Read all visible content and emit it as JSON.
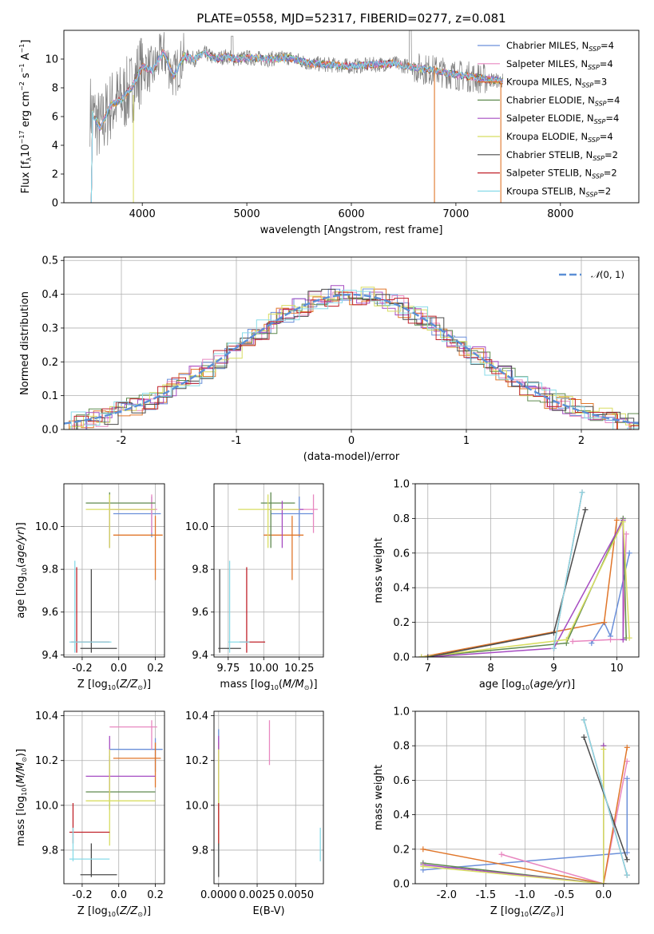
{
  "title": "PLATE=0558, MJD=52317, FIBERID=0277, z=0.081",
  "colors": {
    "Chabrier MILES": "#6a8fd9",
    "Salpeter MILES": "#e887c0",
    "Kroupa MILES": "#e0762a",
    "Chabrier ELODIE": "#5f8a4f",
    "Salpeter ELODIE": "#a64cc2",
    "Kroupa ELODIE": "#d8dd62",
    "Chabrier STELIB": "#4a4a4a",
    "Salpeter STELIB": "#c0222a",
    "Kroupa STELIB": "#88dbe8",
    "data": "#808080",
    "normal": "#5b8fd6"
  },
  "chart_data": [
    {
      "type": "line",
      "id": "spectrum",
      "title": "PLATE=0558, MJD=52317, FIBERID=0277, z=0.081",
      "xlabel": "wavelength [Angstrom, rest frame]",
      "ylabel": "Flux [f_λ 10^-17 erg cm^-2 s^-1 A^-1]",
      "xlim": [
        3250,
        8750
      ],
      "ylim": [
        0,
        12
      ],
      "xticks": [
        4000,
        5000,
        6000,
        7000,
        8000
      ],
      "yticks": [
        0,
        2,
        4,
        6,
        8,
        10
      ],
      "grid": false,
      "legend_position": "top-right",
      "model_x": [
        3500,
        3600,
        3700,
        3800,
        3900,
        4000,
        4100,
        4200,
        4300,
        4400,
        4500,
        4600,
        4700,
        4800,
        4900,
        5000,
        5200,
        5400,
        5600,
        5800,
        6000,
        6200,
        6400,
        6600,
        6800,
        7000,
        7200,
        7400
      ],
      "model_y": [
        6.5,
        5.2,
        6.8,
        7.2,
        8.0,
        9.5,
        9.2,
        10.5,
        8.8,
        10.2,
        10.0,
        10.4,
        10.0,
        10.2,
        10.0,
        10.1,
        10.0,
        10.1,
        9.7,
        9.6,
        9.5,
        9.6,
        9.7,
        9.4,
        9.2,
        8.9,
        8.7,
        8.5
      ],
      "series": [
        {
          "name": "Chabrier MILES, N_SSP=4"
        },
        {
          "name": "Salpeter MILES, N_SSP=4"
        },
        {
          "name": "Kroupa MILES, N_SSP=3"
        },
        {
          "name": "Chabrier ELODIE, N_SSP=4"
        },
        {
          "name": "Salpeter ELODIE, N_SSP=4"
        },
        {
          "name": "Kroupa ELODIE, N_SSP=4"
        },
        {
          "name": "Chabrier STELIB, N_SSP=2"
        },
        {
          "name": "Salpeter STELIB, N_SSP=2"
        },
        {
          "name": "Kroupa STELIB, N_SSP=2"
        }
      ]
    },
    {
      "type": "line",
      "id": "residuals",
      "xlabel": "(data-model)/error",
      "ylabel": "Normed distribution",
      "xlim": [
        -2.5,
        2.5
      ],
      "ylim": [
        0,
        0.51
      ],
      "xticks": [
        -2,
        -1,
        0,
        1,
        2
      ],
      "yticks": [
        0.0,
        0.1,
        0.2,
        0.3,
        0.4,
        0.5
      ],
      "grid": true,
      "legend_position": "top-right",
      "legend": "N(0,1)",
      "series": [
        {
          "name": "N(0,1)",
          "mean": 0,
          "sigma": 1
        }
      ]
    },
    {
      "type": "scatter",
      "id": "age-vs-Z",
      "xlabel": "Z [log10(Z/Z⊙)]",
      "ylabel": "age [log10(age/yr)]",
      "xlim": [
        -0.3,
        0.25
      ],
      "ylim": [
        9.39,
        10.2
      ],
      "xticks": [
        -0.2,
        0.0,
        0.2
      ],
      "yticks": [
        9.4,
        9.6,
        9.8,
        10.0
      ],
      "grid": true,
      "points": [
        {
          "model": "Chabrier MILES",
          "x": 0.18,
          "y": 10.06,
          "xlo": -0.03,
          "xhi": 0.23,
          "ylo": 9.95,
          "yhi": 10.14
        },
        {
          "model": "Salpeter MILES",
          "x": 0.18,
          "y": 10.08,
          "xlo": -0.02,
          "xhi": 0.21,
          "ylo": 9.97,
          "yhi": 10.15
        },
        {
          "model": "Kroupa MILES",
          "x": 0.2,
          "y": 9.96,
          "xlo": -0.03,
          "xhi": 0.24,
          "ylo": 9.75,
          "yhi": 10.05
        },
        {
          "model": "Chabrier ELODIE",
          "x": -0.05,
          "y": 10.11,
          "xlo": -0.18,
          "xhi": 0.2,
          "ylo": 9.9,
          "yhi": 10.16
        },
        {
          "model": "Salpeter ELODIE",
          "x": -0.05,
          "y": 10.08,
          "xlo": -0.05,
          "xhi": 0.2,
          "ylo": 9.9,
          "yhi": 10.12
        },
        {
          "model": "Kroupa ELODIE",
          "x": -0.05,
          "y": 10.08,
          "xlo": -0.18,
          "xhi": 0.2,
          "ylo": 9.9,
          "yhi": 10.15
        },
        {
          "model": "Chabrier STELIB",
          "x": -0.15,
          "y": 9.43,
          "xlo": -0.21,
          "xhi": -0.01,
          "ylo": 9.41,
          "yhi": 9.8
        },
        {
          "model": "Salpeter STELIB",
          "x": -0.23,
          "y": 9.46,
          "xlo": -0.26,
          "xhi": -0.05,
          "ylo": 9.41,
          "yhi": 9.81
        },
        {
          "model": "Kroupa STELIB",
          "x": -0.24,
          "y": 9.46,
          "xlo": -0.27,
          "xhi": -0.04,
          "ylo": 9.41,
          "yhi": 9.84
        }
      ]
    },
    {
      "type": "scatter",
      "id": "age-vs-mass",
      "xlabel": "mass [log10(M/M⊙)]",
      "xlim": [
        9.65,
        10.42
      ],
      "ylim": [
        9.39,
        10.2
      ],
      "xticks": [
        9.75,
        10.0,
        10.25
      ],
      "yticks": [
        9.4,
        9.6,
        9.8,
        10.0
      ],
      "grid": true,
      "points": [
        {
          "model": "Chabrier MILES",
          "x": 10.25,
          "y": 10.06,
          "xlo": 10.05,
          "xhi": 10.35,
          "ylo": 9.95,
          "yhi": 10.14
        },
        {
          "model": "Salpeter MILES",
          "x": 10.35,
          "y": 10.08,
          "xlo": 10.2,
          "xhi": 10.38,
          "ylo": 9.97,
          "yhi": 10.15
        },
        {
          "model": "Kroupa MILES",
          "x": 10.2,
          "y": 9.96,
          "xlo": 10.0,
          "xhi": 10.28,
          "ylo": 9.75,
          "yhi": 10.05
        },
        {
          "model": "Chabrier ELODIE",
          "x": 10.05,
          "y": 10.11,
          "xlo": 9.98,
          "xhi": 10.22,
          "ylo": 9.9,
          "yhi": 10.16
        },
        {
          "model": "Salpeter ELODIE",
          "x": 10.13,
          "y": 10.08,
          "xlo": 10.03,
          "xhi": 10.28,
          "ylo": 9.9,
          "yhi": 10.12
        },
        {
          "model": "Kroupa ELODIE",
          "x": 10.03,
          "y": 10.08,
          "xlo": 9.82,
          "xhi": 10.25,
          "ylo": 9.9,
          "yhi": 10.15
        },
        {
          "model": "Chabrier STELIB",
          "x": 9.69,
          "y": 9.43,
          "xlo": 9.68,
          "xhi": 9.84,
          "ylo": 9.41,
          "yhi": 9.8
        },
        {
          "model": "Salpeter STELIB",
          "x": 9.88,
          "y": 9.46,
          "xlo": 9.83,
          "xhi": 10.01,
          "ylo": 9.41,
          "yhi": 9.81
        },
        {
          "model": "Kroupa STELIB",
          "x": 9.76,
          "y": 9.46,
          "xlo": 9.75,
          "xhi": 9.9,
          "ylo": 9.41,
          "yhi": 9.84
        }
      ]
    },
    {
      "type": "line",
      "id": "weight-vs-age",
      "xlabel": "age [log10(age/yr)]",
      "ylabel": "mass weight",
      "xlim": [
        6.8,
        10.35
      ],
      "ylim": [
        0,
        1.0
      ],
      "xticks": [
        7,
        8,
        9,
        10
      ],
      "yticks": [
        0.0,
        0.2,
        0.4,
        0.6,
        0.8,
        1.0
      ],
      "grid": true,
      "series": [
        {
          "name": "Chabrier MILES",
          "x": [
            9.6,
            9.8,
            9.9,
            10.2
          ],
          "y": [
            0.08,
            0.2,
            0.12,
            0.6
          ]
        },
        {
          "name": "Salpeter MILES",
          "x": [
            9.3,
            9.9,
            10.1,
            10.15
          ],
          "y": [
            0.09,
            0.1,
            0.1,
            0.71
          ]
        },
        {
          "name": "Kroupa MILES",
          "x": [
            6.9,
            9.8,
            10.0
          ],
          "y": [
            0.0,
            0.2,
            0.79
          ]
        },
        {
          "name": "Chabrier ELODIE",
          "x": [
            6.9,
            9.2,
            10.1,
            10.15
          ],
          "y": [
            0.0,
            0.08,
            0.8,
            0.11
          ]
        },
        {
          "name": "Salpeter ELODIE",
          "x": [
            7.0,
            9.0,
            10.1,
            10.1
          ],
          "y": [
            0.0,
            0.05,
            0.79,
            0.1
          ]
        },
        {
          "name": "Kroupa ELODIE",
          "x": [
            6.9,
            9.2,
            10.1,
            10.2
          ],
          "y": [
            0.0,
            0.1,
            0.78,
            0.11
          ]
        },
        {
          "name": "Chabrier STELIB",
          "x": [
            7.0,
            9.0,
            9.5
          ],
          "y": [
            0.0,
            0.14,
            0.85
          ]
        },
        {
          "name": "Salpeter STELIB",
          "x": [
            9.0,
            9.45
          ],
          "y": [
            0.05,
            0.95
          ]
        },
        {
          "name": "Kroupa STELIB",
          "x": [
            9.0,
            9.45
          ],
          "y": [
            0.05,
            0.95
          ]
        }
      ]
    },
    {
      "type": "scatter",
      "id": "mass-vs-Z",
      "xlabel": "Z [log10(Z/Z⊙)]",
      "ylabel": "mass [log10(M/M⊙)]",
      "xlim": [
        -0.3,
        0.25
      ],
      "ylim": [
        9.65,
        10.42
      ],
      "xticks": [
        -0.2,
        0.0,
        0.2
      ],
      "yticks": [
        9.8,
        10.0,
        10.2,
        10.4
      ],
      "grid": true,
      "points": [
        {
          "model": "Chabrier MILES",
          "x": 0.2,
          "y": 10.25,
          "xlo": -0.05,
          "xhi": 0.24,
          "ylo": 10.15,
          "yhi": 10.3
        },
        {
          "model": "Salpeter MILES",
          "x": 0.18,
          "y": 10.35,
          "xlo": -0.05,
          "xhi": 0.21,
          "ylo": 10.25,
          "yhi": 10.38
        },
        {
          "model": "Kroupa MILES",
          "x": 0.2,
          "y": 10.21,
          "xlo": -0.03,
          "xhi": 0.23,
          "ylo": 10.08,
          "yhi": 10.28
        },
        {
          "model": "Chabrier ELODIE",
          "x": -0.05,
          "y": 10.06,
          "xlo": -0.18,
          "xhi": 0.2,
          "ylo": 9.98,
          "yhi": 10.22
        },
        {
          "model": "Salpeter ELODIE",
          "x": -0.05,
          "y": 10.13,
          "xlo": -0.18,
          "xhi": 0.2,
          "ylo": 10.03,
          "yhi": 10.31
        },
        {
          "model": "Kroupa ELODIE",
          "x": -0.05,
          "y": 10.02,
          "xlo": -0.18,
          "xhi": 0.2,
          "ylo": 9.82,
          "yhi": 10.25
        },
        {
          "model": "Chabrier STELIB",
          "x": -0.15,
          "y": 9.69,
          "xlo": -0.21,
          "xhi": -0.01,
          "ylo": 9.68,
          "yhi": 9.83
        },
        {
          "model": "Salpeter STELIB",
          "x": -0.25,
          "y": 9.88,
          "xlo": -0.27,
          "xhi": -0.05,
          "ylo": 9.83,
          "yhi": 10.01
        },
        {
          "model": "Kroupa STELIB",
          "x": -0.25,
          "y": 9.76,
          "xlo": -0.27,
          "xhi": -0.05,
          "ylo": 9.75,
          "yhi": 9.9
        }
      ]
    },
    {
      "type": "scatter",
      "id": "mass-vs-EBV",
      "xlabel": "E(B-V)",
      "xlim": [
        -0.0003,
        0.0068
      ],
      "ylim": [
        9.65,
        10.42
      ],
      "xticks": [
        0.0,
        0.0025,
        0.005
      ],
      "xticklabels": [
        "0.0000",
        "0.0025",
        "0.0050"
      ],
      "yticks": [
        9.8,
        10.0,
        10.2,
        10.4
      ],
      "grid": true,
      "points": [
        {
          "model": "Chabrier MILES",
          "x": 0.0,
          "y": 10.25,
          "ylo": 10.15,
          "yhi": 10.34
        },
        {
          "model": "Salpeter MILES",
          "x": 0.0033,
          "y": 10.28,
          "ylo": 10.18,
          "yhi": 10.38
        },
        {
          "model": "Kroupa MILES",
          "x": 0.0,
          "y": 10.21,
          "ylo": 10.08,
          "yhi": 10.28
        },
        {
          "model": "Chabrier ELODIE",
          "x": 0.0,
          "y": 10.06,
          "ylo": 9.98,
          "yhi": 10.22
        },
        {
          "model": "Salpeter ELODIE",
          "x": 0.0,
          "y": 10.13,
          "ylo": 10.03,
          "yhi": 10.31
        },
        {
          "model": "Kroupa ELODIE",
          "x": 0.0,
          "y": 10.02,
          "ylo": 9.82,
          "yhi": 10.25
        },
        {
          "model": "Chabrier STELIB",
          "x": 0.0,
          "y": 9.75,
          "ylo": 9.68,
          "yhi": 9.83
        },
        {
          "model": "Salpeter STELIB",
          "x": 0.0,
          "y": 9.92,
          "ylo": 9.83,
          "yhi": 10.01
        },
        {
          "model": "Kroupa STELIB",
          "x": 0.0066,
          "y": 9.82,
          "ylo": 9.75,
          "yhi": 9.9
        }
      ]
    },
    {
      "type": "line",
      "id": "weight-vs-Z",
      "xlabel": "Z [log10(Z/Z⊙)]",
      "ylabel": "mass weight",
      "xlim": [
        -2.4,
        0.45
      ],
      "ylim": [
        0,
        1.0
      ],
      "xticks": [
        -2.0,
        -1.5,
        -1.0,
        -0.5,
        0.0
      ],
      "yticks": [
        0.0,
        0.2,
        0.4,
        0.6,
        0.8,
        1.0
      ],
      "grid": true,
      "series": [
        {
          "name": "Chabrier MILES",
          "x": [
            -2.3,
            0.3,
            0.3
          ],
          "y": [
            0.08,
            0.18,
            0.61
          ]
        },
        {
          "name": "Salpeter MILES",
          "x": [
            -1.3,
            0.0,
            0.3
          ],
          "y": [
            0.17,
            0.0,
            0.71
          ]
        },
        {
          "name": "Kroupa MILES",
          "x": [
            -2.3,
            0.0,
            0.3
          ],
          "y": [
            0.2,
            0.0,
            0.79
          ]
        },
        {
          "name": "Chabrier ELODIE",
          "x": [
            -2.3,
            0.0,
            0.0
          ],
          "y": [
            0.12,
            0.0,
            0.8
          ]
        },
        {
          "name": "Salpeter ELODIE",
          "x": [
            -2.3,
            0.0,
            0.0
          ],
          "y": [
            0.11,
            0.0,
            0.8
          ]
        },
        {
          "name": "Kroupa ELODIE",
          "x": [
            -2.3,
            0.0,
            0.0
          ],
          "y": [
            0.1,
            0.0,
            0.78
          ]
        },
        {
          "name": "Chabrier STELIB",
          "x": [
            -0.25,
            0.3
          ],
          "y": [
            0.85,
            0.14
          ]
        },
        {
          "name": "Salpeter STELIB",
          "x": [
            -0.25,
            0.3
          ],
          "y": [
            0.95,
            0.05
          ]
        },
        {
          "name": "Kroupa STELIB",
          "x": [
            -0.25,
            0.3
          ],
          "y": [
            0.95,
            0.05
          ]
        }
      ]
    }
  ]
}
